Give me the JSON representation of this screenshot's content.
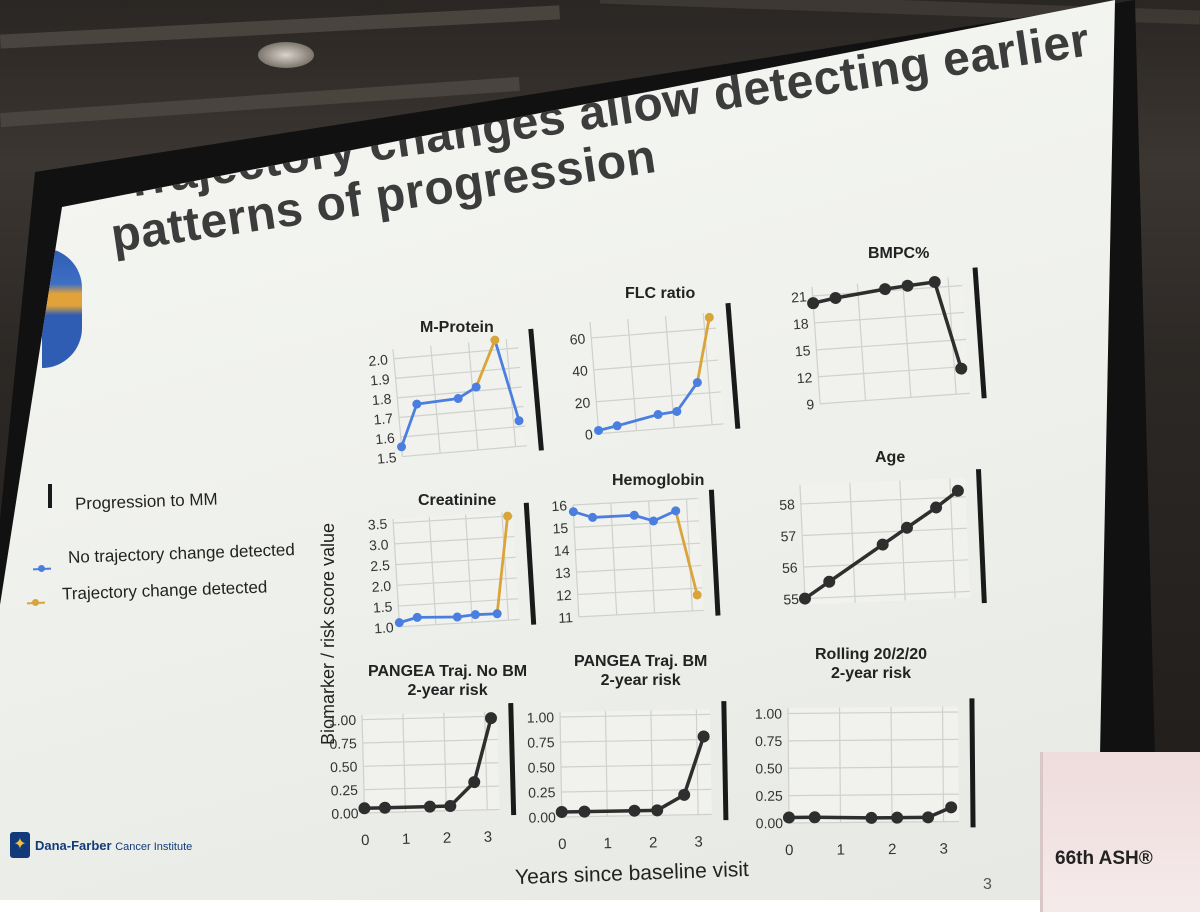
{
  "slide": {
    "title_line1": "Trajectory changes allow detecting earlier",
    "title_line2": "patterns of progression",
    "y_axis_label": "Biomarker / risk score value",
    "x_axis_label": "Years since baseline visit",
    "page_number": "3",
    "institute_name": "Dana-Farber",
    "institute_sub": "Cancer Institute"
  },
  "legend": {
    "progression": "Progression to MM",
    "no_change": "No trajectory change detected",
    "change": "Trajectory change detected"
  },
  "colors": {
    "no_change": "#4a7fe0",
    "change": "#d9a53a",
    "progression_bar": "#1a1a1a",
    "neutral_line": "#2e2e2e"
  },
  "event_banner": "66th ASH®",
  "x_ticks": [
    "0",
    "1",
    "2",
    "3"
  ],
  "chart_data": [
    {
      "type": "line",
      "title": "M-Protein",
      "style": "trajectory",
      "ylim": [
        1.5,
        2.05
      ],
      "yticks": [
        "1.5",
        "1.6",
        "1.7",
        "1.8",
        "1.9",
        "2.0"
      ],
      "x": [
        0,
        0.5,
        1.6,
        2.1,
        2.7,
        3.15
      ],
      "y": [
        1.55,
        1.76,
        1.77,
        1.82,
        2.05,
        1.63
      ],
      "segment_colors": [
        "no_change",
        "no_change",
        "no_change",
        "change",
        "no_change"
      ]
    },
    {
      "type": "line",
      "title": "FLC ratio",
      "style": "trajectory",
      "ylim": [
        0,
        70
      ],
      "yticks": [
        "0",
        "20",
        "40",
        "60"
      ],
      "x": [
        0,
        0.5,
        1.6,
        2.1,
        2.7,
        3.15
      ],
      "y": [
        2,
        4,
        9,
        10,
        27,
        67
      ],
      "segment_colors": [
        "no_change",
        "no_change",
        "no_change",
        "no_change",
        "change"
      ]
    },
    {
      "type": "line",
      "title": "BMPC%",
      "style": "neutral",
      "ylim": [
        9,
        22
      ],
      "yticks": [
        "9",
        "12",
        "15",
        "18",
        "21"
      ],
      "x": [
        0,
        0.5,
        1.6,
        2.1,
        2.7,
        3.15
      ],
      "y": [
        20.2,
        20.6,
        21.2,
        21.4,
        21.6,
        11.8
      ]
    },
    {
      "type": "line",
      "title": "Creatinine",
      "style": "trajectory",
      "ylim": [
        1.0,
        3.6
      ],
      "yticks": [
        "1.0",
        "1.5",
        "2.0",
        "2.5",
        "3.0",
        "3.5"
      ],
      "x": [
        0,
        0.5,
        1.6,
        2.1,
        2.7,
        3.15
      ],
      "y": [
        1.1,
        1.2,
        1.15,
        1.18,
        1.17,
        3.5
      ],
      "segment_colors": [
        "no_change",
        "no_change",
        "no_change",
        "no_change",
        "change"
      ]
    },
    {
      "type": "line",
      "title": "Hemoglobin",
      "style": "trajectory",
      "ylim": [
        11,
        16
      ],
      "yticks": [
        "11",
        "12",
        "13",
        "14",
        "15",
        "16"
      ],
      "x": [
        0,
        0.5,
        1.6,
        2.1,
        2.7,
        3.15
      ],
      "y": [
        15.7,
        15.4,
        15.4,
        15.1,
        15.5,
        11.7
      ],
      "segment_colors": [
        "no_change",
        "no_change",
        "no_change",
        "no_change",
        "change"
      ]
    },
    {
      "type": "line",
      "title": "Age",
      "style": "neutral",
      "ylim": [
        54.8,
        58.6
      ],
      "yticks": [
        "55",
        "56",
        "57",
        "58"
      ],
      "x": [
        0,
        0.5,
        1.6,
        2.1,
        2.7,
        3.15
      ],
      "y": [
        55.0,
        55.5,
        56.6,
        57.1,
        57.7,
        58.2
      ]
    },
    {
      "type": "line",
      "title": "PANGEA Traj. No BM\n2-year risk",
      "style": "neutral",
      "ylim": [
        0,
        1.05
      ],
      "yticks": [
        "0.00",
        "0.25",
        "0.50",
        "0.75",
        "1.00"
      ],
      "x": [
        0,
        0.5,
        1.6,
        2.1,
        2.7,
        3.15
      ],
      "y": [
        0.05,
        0.05,
        0.05,
        0.05,
        0.3,
        0.98
      ]
    },
    {
      "type": "line",
      "title": "PANGEA Traj. BM\n2-year risk",
      "style": "neutral",
      "ylim": [
        0,
        1.05
      ],
      "yticks": [
        "0.00",
        "0.25",
        "0.50",
        "0.75",
        "1.00"
      ],
      "x": [
        0,
        0.5,
        1.6,
        2.1,
        2.7,
        3.15
      ],
      "y": [
        0.05,
        0.05,
        0.05,
        0.05,
        0.2,
        0.78
      ]
    },
    {
      "type": "line",
      "title": "Rolling 20/2/20\n2-year risk",
      "style": "neutral",
      "ylim": [
        0,
        1.05
      ],
      "yticks": [
        "0.00",
        "0.25",
        "0.50",
        "0.75",
        "1.00"
      ],
      "x": [
        0,
        0.5,
        1.6,
        2.1,
        2.7,
        3.15
      ],
      "y": [
        0.05,
        0.05,
        0.04,
        0.04,
        0.04,
        0.13
      ]
    }
  ]
}
